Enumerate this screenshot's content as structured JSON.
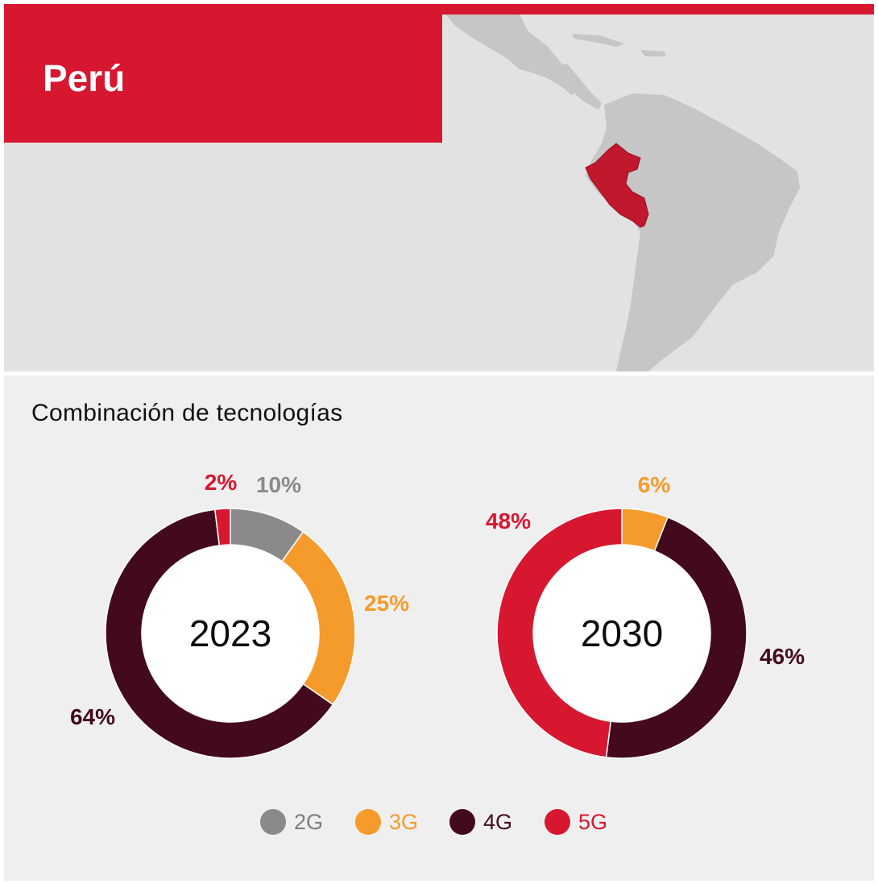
{
  "header": {
    "country": "Perú"
  },
  "section_title": "Combinación de tecnologías",
  "colors": {
    "2G": "#8a8a8b",
    "3G": "#f59b2c",
    "4G": "#430a1e",
    "5G": "#d71730",
    "map_land": "#c6c6c6",
    "map_highlight": "#c0182d"
  },
  "chart_data": [
    {
      "type": "pie",
      "center_label": "2023",
      "categories": [
        "2G",
        "3G",
        "4G",
        "5G"
      ],
      "values": [
        10,
        25,
        64,
        2
      ],
      "labels": [
        "10%",
        "25%",
        "64%",
        "2%"
      ]
    },
    {
      "type": "pie",
      "center_label": "2030",
      "categories": [
        "3G",
        "4G",
        "5G"
      ],
      "values": [
        6,
        46,
        48
      ],
      "labels": [
        "6%",
        "46%",
        "48%"
      ]
    }
  ],
  "legend": [
    {
      "label": "2G",
      "key": "2G"
    },
    {
      "label": "3G",
      "key": "3G"
    },
    {
      "label": "4G",
      "key": "4G"
    },
    {
      "label": "5G",
      "key": "5G"
    }
  ]
}
